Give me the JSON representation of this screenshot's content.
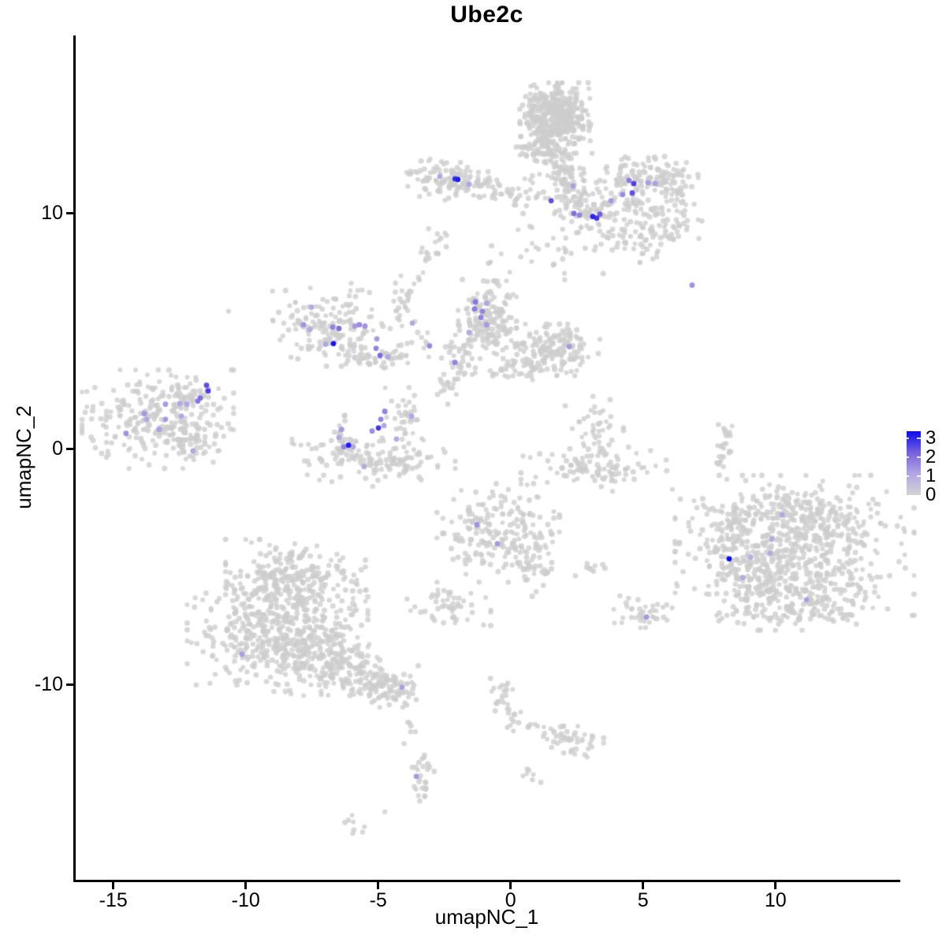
{
  "chart_data": {
    "type": "scatter",
    "title": "Ube2c",
    "xlabel": "umapNC_1",
    "ylabel": "umapNC_2",
    "xlim": [
      -16.45,
      14.65
    ],
    "ylim": [
      -18.3,
      17.55
    ],
    "xticks": [
      "-15",
      "-10",
      "-5",
      "0",
      "5",
      "10"
    ],
    "xtick_values": [
      -15,
      -10,
      -5,
      0,
      5,
      10
    ],
    "yticks": [
      "10",
      "0",
      "-10"
    ],
    "ytick_values": [
      10,
      0,
      -10
    ],
    "grid": false,
    "background_point_color": "#CDCDCD",
    "expression_color_stops": [
      "#D3D3D3",
      "#B3A6E3",
      "#7660DD",
      "#0C0CF2"
    ],
    "legend": {
      "position": "right",
      "min": 0,
      "max": 3,
      "labels": [
        "3",
        "2",
        "1",
        "0"
      ],
      "gradient_stops": [
        "#D3D3D3",
        "#B3A6E3",
        "#7660DD",
        "#0C0CF2"
      ]
    },
    "cluster_format": "[center_x, center_y, sigma_x, sigma_y, n_points] in data units; gaussian blobs of non-expressing (grey) cells",
    "clusters": [
      [
        1.71,
        14.05,
        0.62,
        0.68,
        400
      ],
      [
        1.2,
        12.64,
        0.45,
        0.3,
        60
      ],
      [
        1.97,
        11.64,
        0.4,
        0.45,
        70
      ],
      [
        2.54,
        10.43,
        0.55,
        0.5,
        60
      ],
      [
        2.03,
        8.83,
        0.85,
        0.75,
        35
      ],
      [
        0.57,
        10.97,
        0.35,
        0.45,
        12
      ],
      [
        -2.22,
        11.44,
        0.85,
        0.4,
        115
      ],
      [
        -0.41,
        10.94,
        0.75,
        0.22,
        28
      ],
      [
        -2.73,
        9.2,
        0.3,
        0.3,
        8
      ],
      [
        4.47,
        11.51,
        0.5,
        0.4,
        55
      ],
      [
        5.87,
        11.44,
        0.55,
        0.45,
        65
      ],
      [
        4.89,
        10.43,
        0.75,
        0.4,
        45
      ],
      [
        5.25,
        9.13,
        1.0,
        0.55,
        95
      ],
      [
        3.64,
        10.64,
        0.7,
        0.65,
        25
      ],
      [
        6.38,
        10.3,
        0.25,
        0.65,
        15
      ],
      [
        -6.9,
        5.28,
        0.95,
        0.8,
        155
      ],
      [
        -4.96,
        3.95,
        0.85,
        0.3,
        55
      ],
      [
        -4.16,
        6.15,
        0.18,
        0.55,
        18
      ],
      [
        -3.59,
        4.85,
        0.45,
        0.45,
        10
      ],
      [
        -0.88,
        5.49,
        0.5,
        0.75,
        170
      ],
      [
        1.5,
        4.21,
        0.85,
        0.5,
        165
      ],
      [
        -2.01,
        3.95,
        0.28,
        0.45,
        30
      ],
      [
        0.07,
        3.28,
        0.8,
        0.25,
        30
      ],
      [
        -2.43,
        2.68,
        0.25,
        0.35,
        10
      ],
      [
        -13.32,
        1.27,
        1.3,
        0.95,
        250
      ],
      [
        -12.04,
        0.33,
        0.55,
        0.45,
        55
      ],
      [
        -12.13,
        2.17,
        0.45,
        0.4,
        25
      ],
      [
        -5.17,
        -0.37,
        1.4,
        0.55,
        150
      ],
      [
        -4.01,
        1.3,
        0.33,
        0.6,
        35
      ],
      [
        -6.39,
        0.47,
        0.2,
        0.5,
        18
      ],
      [
        3.25,
        -0.9,
        1.3,
        0.45,
        95
      ],
      [
        3.16,
        0.7,
        0.5,
        0.7,
        50
      ],
      [
        10.72,
        -4.08,
        2.05,
        1.35,
        560
      ],
      [
        10.63,
        -2.68,
        1.5,
        0.45,
        110
      ],
      [
        9.24,
        -5.75,
        0.8,
        0.75,
        130
      ],
      [
        11.74,
        -6.25,
        0.95,
        0.55,
        90
      ],
      [
        8.13,
        -3.75,
        0.4,
        0.75,
        40
      ],
      [
        10.63,
        -7.02,
        1.1,
        0.3,
        40
      ],
      [
        -8.12,
        -5.59,
        1.2,
        0.8,
        230
      ],
      [
        -8.8,
        -7.69,
        1.55,
        1.05,
        420
      ],
      [
        -6.99,
        -8.8,
        1.0,
        0.75,
        170
      ],
      [
        -4.63,
        -10.07,
        0.6,
        0.4,
        50
      ],
      [
        -8.27,
        -4.62,
        0.9,
        0.3,
        25
      ],
      [
        -0.47,
        -3.55,
        1.05,
        0.95,
        200
      ],
      [
        0.99,
        -4.92,
        0.35,
        0.6,
        35
      ],
      [
        -2.4,
        -6.69,
        0.75,
        0.4,
        50
      ],
      [
        4.89,
        -6.99,
        0.55,
        0.35,
        40
      ],
      [
        2.3,
        -12.41,
        0.55,
        0.3,
        40
      ],
      [
        -3.86,
        -11.94,
        0.12,
        0.4,
        6
      ],
      [
        -2.88,
        8.29,
        0.28,
        0.22,
        10
      ],
      [
        2.9,
        -4.98,
        0.3,
        0.2,
        9
      ],
      [
        1.59,
        -12.01,
        0.3,
        0.15,
        8
      ],
      [
        0.72,
        -11.61,
        0.2,
        0.15,
        5
      ],
      [
        -1.12,
        7.53,
        0.5,
        0.5,
        8
      ]
    ],
    "strand_format": "[x1, y1, x2, y2, width, n_points] grey cell strands in data units",
    "strands": [
      [
        -6.42,
        -9.33,
        -4.04,
        -10.43,
        0.36,
        90
      ],
      [
        -0.44,
        -9.77,
        0.13,
        -11.97,
        0.21,
        32
      ],
      [
        8.13,
        0.94,
        7.9,
        -0.74,
        0.15,
        26
      ],
      [
        -3.41,
        -13.14,
        -3.27,
        -14.92,
        0.21,
        28
      ],
      [
        -6.18,
        -15.75,
        -5.62,
        -16.15,
        0.15,
        8
      ],
      [
        0.46,
        -13.68,
        0.81,
        -14.08,
        0.15,
        7
      ],
      [
        -4.22,
        5.82,
        -3.09,
        7.99,
        0.12,
        9
      ],
      [
        -1.9,
        3.04,
        -2.64,
        2.31,
        0.12,
        7
      ]
    ],
    "singles": [
      [
        -10.65,
        5.85
      ],
      [
        -4.75,
        -15.38
      ],
      [
        7.87,
        -0.64
      ]
    ],
    "expressing_point_format": "[x, y, expression_value 0-3]",
    "expressing_points": [
      [
        -2.67,
        11.57,
        1.0
      ],
      [
        -2.1,
        11.47,
        2.6
      ],
      [
        -1.99,
        11.44,
        2.8
      ],
      [
        -1.57,
        11.24,
        1.0
      ],
      [
        1.53,
        10.54,
        2.2
      ],
      [
        2.36,
        11.17,
        1.1
      ],
      [
        2.39,
        10.0,
        1.8
      ],
      [
        2.6,
        9.93,
        1.5
      ],
      [
        3.1,
        9.87,
        2.7
      ],
      [
        3.25,
        9.8,
        2.5
      ],
      [
        3.37,
        9.97,
        2.0
      ],
      [
        3.79,
        10.54,
        1.2
      ],
      [
        4.23,
        10.8,
        1.4
      ],
      [
        4.47,
        11.4,
        1.6
      ],
      [
        4.65,
        11.27,
        2.4
      ],
      [
        4.59,
        10.87,
        2.2
      ],
      [
        5.19,
        11.3,
        1.1
      ],
      [
        5.46,
        11.27,
        1.1
      ],
      [
        6.85,
        6.96,
        1.3
      ],
      [
        -7.52,
        6.02,
        0.9
      ],
      [
        -7.82,
        5.28,
        1.3
      ],
      [
        -7.58,
        5.08,
        0.9
      ],
      [
        -6.72,
        5.18,
        1.5
      ],
      [
        -6.48,
        5.12,
        1.8
      ],
      [
        -5.88,
        5.22,
        1.2
      ],
      [
        -5.71,
        5.28,
        1.4
      ],
      [
        -5.5,
        5.22,
        1.3
      ],
      [
        -6.99,
        4.45,
        1.0
      ],
      [
        -6.69,
        4.48,
        2.9
      ],
      [
        -5.05,
        4.68,
        1.2
      ],
      [
        -5.08,
        4.28,
        1.5
      ],
      [
        -4.93,
        3.98,
        1.9
      ],
      [
        -4.63,
        3.91,
        1.0
      ],
      [
        -3.71,
        5.35,
        1.0
      ],
      [
        -3.06,
        4.38,
        1.4
      ],
      [
        -1.33,
        6.25,
        1.7
      ],
      [
        -1.36,
        5.95,
        1.6
      ],
      [
        -0.91,
        6.19,
        1.0
      ],
      [
        -1.06,
        5.85,
        1.5
      ],
      [
        -1.12,
        5.59,
        1.5
      ],
      [
        -0.91,
        5.28,
        1.2
      ],
      [
        -1.57,
        4.95,
        0.9
      ],
      [
        -2.1,
        3.68,
        1.5
      ],
      [
        2.21,
        4.35,
        1.2
      ],
      [
        -11.48,
        2.71,
        2.2
      ],
      [
        -11.42,
        2.47,
        2.4
      ],
      [
        -11.72,
        2.17,
        1.8
      ],
      [
        -11.81,
        2.04,
        1.7
      ],
      [
        -13.03,
        1.91,
        1.2
      ],
      [
        -12.49,
        1.94,
        1.0
      ],
      [
        -12.22,
        1.91,
        1.0
      ],
      [
        -13.83,
        1.51,
        1.2
      ],
      [
        -13.74,
        1.27,
        1.0
      ],
      [
        -13.03,
        1.27,
        1.2
      ],
      [
        -12.43,
        1.4,
        1.0
      ],
      [
        -13.27,
        0.84,
        1.1
      ],
      [
        -14.52,
        0.67,
        1.3
      ],
      [
        -11.99,
        -0.07,
        1.0
      ],
      [
        -4.75,
        1.61,
        1.5
      ],
      [
        -4.9,
        1.27,
        1.5
      ],
      [
        -4.78,
        1.0,
        1.0
      ],
      [
        -4.99,
        0.9,
        2.5
      ],
      [
        -5.23,
        0.77,
        1.4
      ],
      [
        -6.39,
        0.84,
        1.2
      ],
      [
        -6.48,
        0.5,
        1.0
      ],
      [
        -6.12,
        0.17,
        2.8
      ],
      [
        -6.3,
        0.1,
        1.5
      ],
      [
        -5.94,
        0.1,
        1.0
      ],
      [
        -4.31,
        0.43,
        0.9
      ],
      [
        -3.74,
        1.4,
        1.0
      ],
      [
        -5.53,
        -0.74,
        0.9
      ],
      [
        8.25,
        -4.65,
        3.0
      ],
      [
        10.25,
        -2.78,
        1.0
      ],
      [
        9.86,
        -3.81,
        0.9
      ],
      [
        9.8,
        -4.41,
        0.9
      ],
      [
        9.06,
        -4.58,
        0.8
      ],
      [
        8.76,
        -5.45,
        0.9
      ],
      [
        11.17,
        -6.39,
        1.1
      ],
      [
        -10.14,
        -8.7,
        1.1
      ],
      [
        -4.1,
        -10.1,
        1.1
      ],
      [
        -1.27,
        -3.21,
        1.3
      ],
      [
        -0.5,
        -4.01,
        1.2
      ],
      [
        5.13,
        -7.12,
        1.2
      ],
      [
        -3.56,
        -13.88,
        1.2
      ]
    ]
  }
}
